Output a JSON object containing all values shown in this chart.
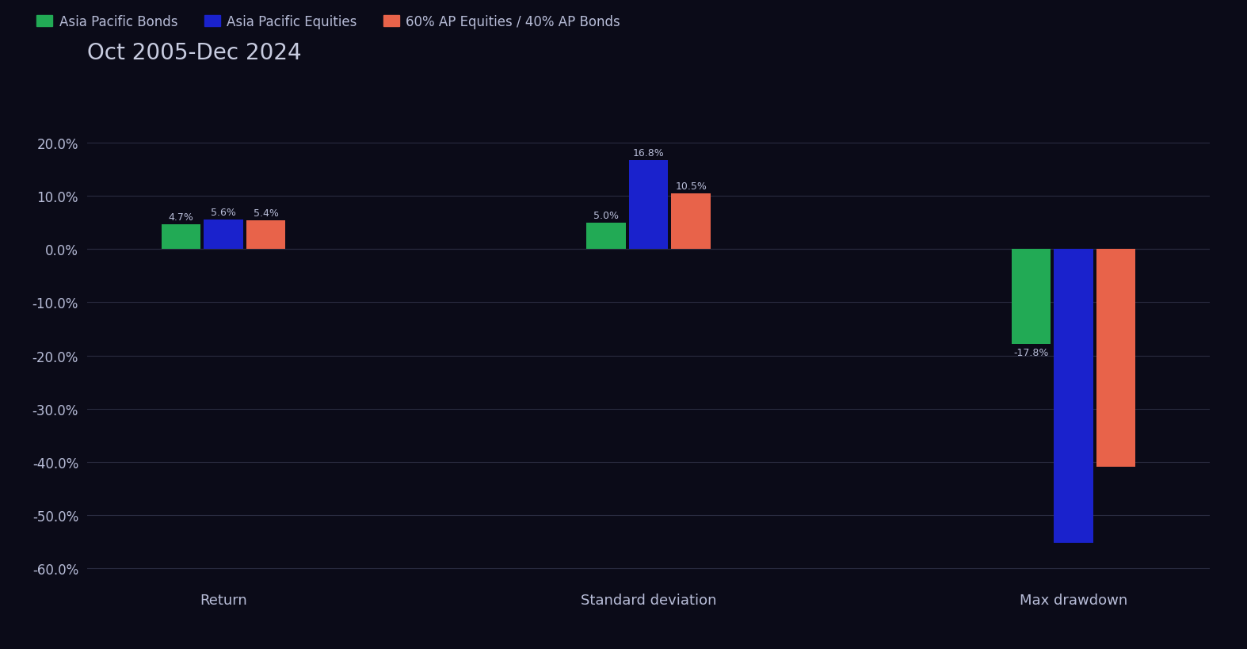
{
  "title": "Oct 2005-Dec 2024",
  "categories": [
    "Return",
    "Standard deviation",
    "Max drawdown"
  ],
  "series": {
    "Asia Pacific Bonds": {
      "color": "#22aa55",
      "values": [
        4.7,
        5.0,
        -17.8
      ]
    },
    "Asia Pacific Equities": {
      "color": "#1a22cc",
      "values": [
        5.6,
        16.8,
        -55.2
      ]
    },
    "60% AP Equities / 40% AP Bonds": {
      "color": "#e8634a",
      "values": [
        5.4,
        10.5,
        -41.0
      ]
    }
  },
  "labels": {
    "Asia Pacific Bonds": [
      "4.7%",
      "5.0%",
      "-17.8%"
    ],
    "Asia Pacific Equities": [
      "5.6%",
      "16.8%",
      ""
    ],
    "60% AP Equities / 40% AP Bonds": [
      "5.4%",
      "10.5%",
      ""
    ]
  },
  "label_below_bond_drawdown": "-17.8%",
  "ylim": [
    -63,
    25
  ],
  "yticks": [
    -60,
    -50,
    -40,
    -30,
    -20,
    -10,
    0,
    10,
    20
  ],
  "background_color": "#0b0b18",
  "plot_bg_color": "#0b0b18",
  "text_color": "#b8bdd8",
  "title_color": "#c8cce0",
  "grid_color": "#2a2c40",
  "bar_width": 0.25,
  "group_positions": [
    1.0,
    3.5,
    6.0
  ],
  "legend_labels": [
    "Asia Pacific Bonds",
    "Asia Pacific Equities",
    "60% AP Equities / 40% AP Bonds"
  ],
  "legend_colors": [
    "#22aa55",
    "#1a22cc",
    "#e8634a"
  ]
}
